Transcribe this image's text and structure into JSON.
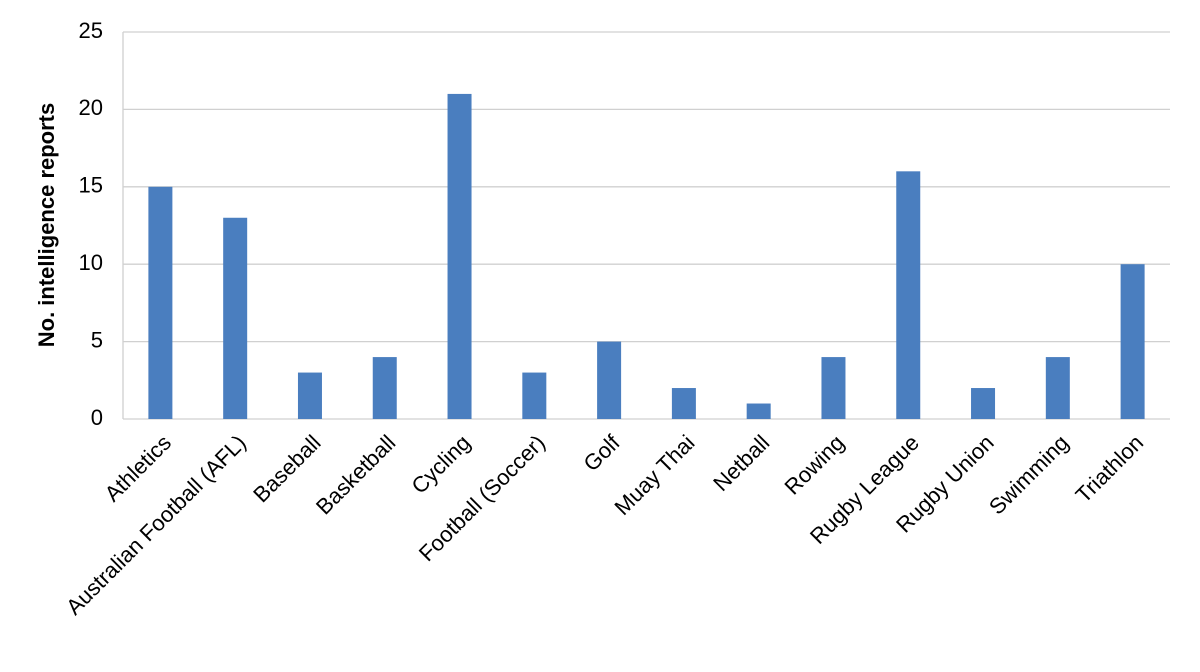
{
  "chart_data": {
    "type": "bar",
    "ylabel": "No. intelligence reports",
    "categories": [
      "Athletics",
      "Australian Football (AFL)",
      "Baseball",
      "Basketball",
      "Cycling",
      "Football (Soccer)",
      "Golf",
      "Muay Thai",
      "Netball",
      "Rowing",
      "Rugby League",
      "Rugby Union",
      "Swimming",
      "Triathlon"
    ],
    "values": [
      15,
      13,
      3,
      4,
      21,
      3,
      5,
      2,
      1,
      4,
      16,
      2,
      4,
      10
    ],
    "color": "#4a7ebf",
    "ylim": [
      0,
      25
    ],
    "yticks": [
      0,
      5,
      10,
      15,
      20,
      25
    ],
    "grid": true
  }
}
